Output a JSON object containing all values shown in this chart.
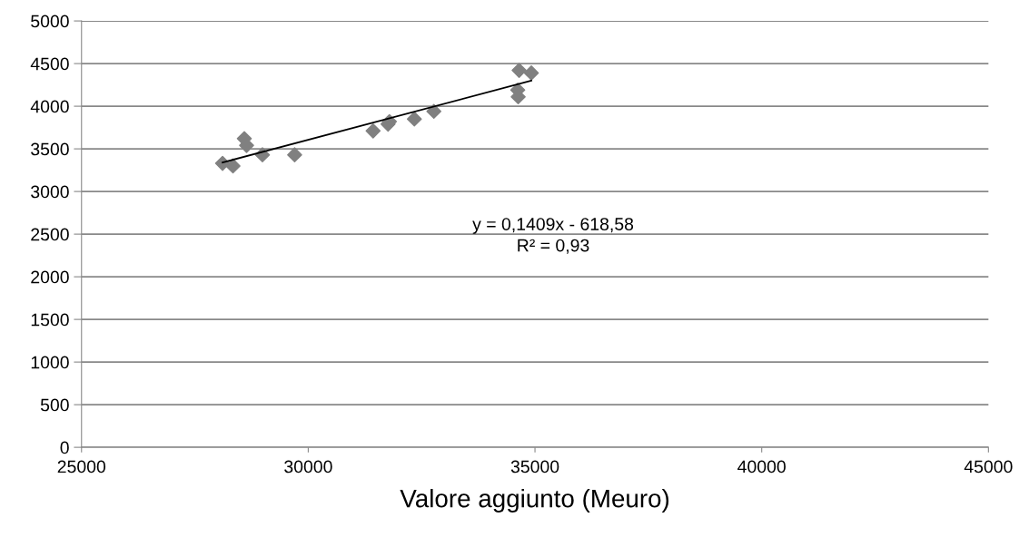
{
  "chart_data": {
    "type": "scatter",
    "xlabel": "Valore aggiunto (Meuro)",
    "series": [
      {
        "color": "#808080",
        "marker": "diamond",
        "x": [
          28110,
          28340,
          28590,
          28640,
          28990,
          29700,
          31430,
          31760,
          31790,
          32340,
          32770,
          34650,
          34920,
          34620,
          34630
        ],
        "values": [
          3330,
          3300,
          3620,
          3540,
          3430,
          3430,
          3710,
          3790,
          3820,
          3850,
          3940,
          4420,
          4390,
          4190,
          4110
        ]
      },
      {
        "type": "line",
        "color": "#000000",
        "marker": "none",
        "x": [
          28110,
          34920
        ],
        "values": [
          3340,
          4300
        ]
      }
    ],
    "annotations": [
      "y = 0,1409x - 618,58",
      "R² = 0,93"
    ],
    "xlim": [
      25000,
      45000
    ],
    "xticks": [
      25000,
      30000,
      35000,
      40000,
      45000
    ],
    "ylim": [
      0,
      5000
    ],
    "yticks": [
      0,
      500,
      1000,
      1500,
      2000,
      2500,
      3000,
      3500,
      4000,
      4500,
      5000
    ],
    "grid": "y"
  }
}
